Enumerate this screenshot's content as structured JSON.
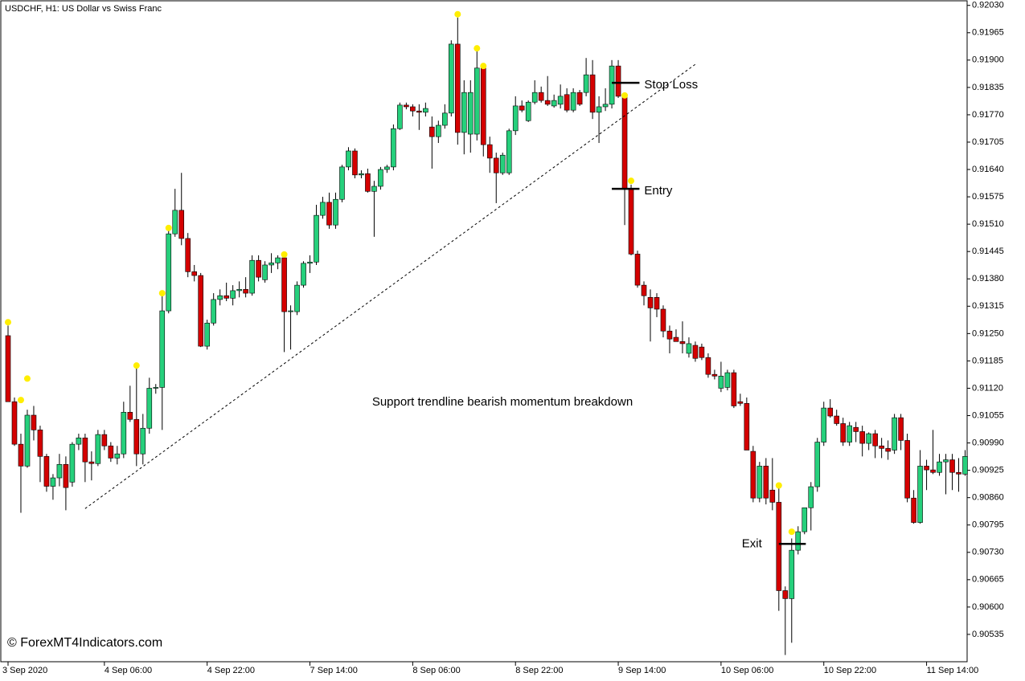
{
  "chart_data": {
    "type": "candlestick",
    "title": "USDCHF, H1:  US Dollar vs Swiss Franc",
    "watermark": "© ForexMT4Indicators.com",
    "annotation": "Support trendline bearish momentum breakdown",
    "up_color": "#26d07c",
    "down_color": "#d40000",
    "categories": [
      "3 Sep 2020",
      null,
      null,
      null,
      null,
      null,
      null,
      null,
      null,
      null,
      null,
      null,
      null,
      null,
      null,
      "4 Sep 06:00",
      null,
      null,
      null,
      null,
      null,
      null,
      null,
      null,
      null,
      null,
      null,
      null,
      null,
      null,
      null,
      "4 Sep 22:00",
      null,
      null,
      null,
      null,
      null,
      null,
      null,
      null,
      null,
      null,
      null,
      null,
      null,
      null,
      null,
      "7 Sep 14:00",
      null,
      null,
      null,
      null,
      null,
      null,
      null,
      null,
      null,
      null,
      null,
      null,
      null,
      null,
      null,
      "8 Sep 06:00",
      null,
      null,
      null,
      null,
      null,
      null,
      null,
      null,
      null,
      null,
      null,
      null,
      null,
      null,
      null,
      "8 Sep 22:00",
      null,
      null,
      null,
      null,
      null,
      null,
      null,
      null,
      null,
      null,
      null,
      null,
      null,
      null,
      null,
      "9 Sep 14:00",
      null,
      null,
      null,
      null,
      null,
      null,
      null,
      null,
      null,
      null,
      null,
      null,
      null,
      null,
      null,
      "10 Sep 06:00",
      null,
      null,
      null,
      null,
      null,
      null,
      null,
      null,
      null,
      null,
      null,
      null,
      null,
      null,
      null,
      "10 Sep 22:00",
      null,
      null,
      null,
      null,
      null,
      null,
      null,
      null,
      null,
      null,
      null,
      null,
      null,
      null,
      null,
      "11 Sep 14:00",
      null,
      null,
      null,
      null,
      null,
      null
    ],
    "ohlc": [
      [
        0.91245,
        0.91269,
        0.91088,
        0.91088
      ],
      [
        0.91088,
        0.91098,
        0.90983,
        0.90987
      ],
      [
        0.90987,
        0.91012,
        0.90824,
        0.90935
      ],
      [
        0.90935,
        0.91069,
        0.90931,
        0.91056
      ],
      [
        0.91056,
        0.91078,
        0.90996,
        0.91021
      ],
      [
        0.91021,
        0.91031,
        0.90897,
        0.90958
      ],
      [
        0.90958,
        0.90964,
        0.90874,
        0.90887
      ],
      [
        0.90887,
        0.90916,
        0.90855,
        0.90907
      ],
      [
        0.90907,
        0.90964,
        0.90887,
        0.90939
      ],
      [
        0.90939,
        0.90958,
        0.9083,
        0.90884
      ],
      [
        0.90897,
        0.90992,
        0.90886,
        0.90987
      ],
      [
        0.90987,
        0.91012,
        0.90973,
        0.91002
      ],
      [
        0.91002,
        0.91012,
        0.90897,
        0.90945
      ],
      [
        0.90945,
        0.9097,
        0.90901,
        0.90941
      ],
      [
        0.90941,
        0.91021,
        0.90935,
        0.9101
      ],
      [
        0.9101,
        0.91021,
        0.90973,
        0.90983
      ],
      [
        0.90983,
        0.90992,
        0.90945,
        0.90954
      ],
      [
        0.90954,
        0.90983,
        0.90939,
        0.90964
      ],
      [
        0.90964,
        0.91088,
        0.90954,
        0.91063
      ],
      [
        0.91063,
        0.91126,
        0.9104,
        0.91046
      ],
      [
        0.91046,
        0.91174,
        0.90935,
        0.90964
      ],
      [
        0.90964,
        0.91059,
        0.90939,
        0.91025
      ],
      [
        0.91025,
        0.91145,
        0.91012,
        0.9112
      ],
      [
        0.9112,
        0.9113,
        0.91107,
        0.91122
      ],
      [
        0.91122,
        0.91346,
        0.91021,
        0.91304
      ],
      [
        0.91304,
        0.91499,
        0.91298,
        0.91487
      ],
      [
        0.91487,
        0.91594,
        0.9148,
        0.91543
      ],
      [
        0.91543,
        0.91632,
        0.9146,
        0.91476
      ],
      [
        0.91476,
        0.91489,
        0.91384,
        0.91397
      ],
      [
        0.91397,
        0.91413,
        0.91374,
        0.91388
      ],
      [
        0.91388,
        0.91394,
        0.91218,
        0.9122
      ],
      [
        0.9122,
        0.91283,
        0.91212,
        0.91275
      ],
      [
        0.91275,
        0.91346,
        0.91269,
        0.91331
      ],
      [
        0.91331,
        0.91355,
        0.91317,
        0.9134
      ],
      [
        0.9134,
        0.91371,
        0.91327,
        0.91334
      ],
      [
        0.91334,
        0.91365,
        0.91317,
        0.91352
      ],
      [
        0.91352,
        0.91374,
        0.91336,
        0.91355
      ],
      [
        0.91355,
        0.91384,
        0.91336,
        0.91346
      ],
      [
        0.91346,
        0.91436,
        0.9134,
        0.91424
      ],
      [
        0.91424,
        0.91436,
        0.91374,
        0.91384
      ],
      [
        0.91378,
        0.91422,
        0.91371,
        0.91413
      ],
      [
        0.91413,
        0.91441,
        0.91394,
        0.91418
      ],
      [
        0.91418,
        0.91436,
        0.91403,
        0.9143
      ],
      [
        0.9143,
        0.91436,
        0.91206,
        0.91302
      ],
      [
        0.91302,
        0.91317,
        0.91212,
        0.91304
      ],
      [
        0.91302,
        0.91374,
        0.91294,
        0.91365
      ],
      [
        0.91365,
        0.91422,
        0.91359,
        0.91417
      ],
      [
        0.91417,
        0.91436,
        0.91394,
        0.9142
      ],
      [
        0.9142,
        0.91556,
        0.91413,
        0.91531
      ],
      [
        0.91531,
        0.91575,
        0.91523,
        0.91562
      ],
      [
        0.91562,
        0.91585,
        0.91499,
        0.91508
      ],
      [
        0.91508,
        0.91585,
        0.91499,
        0.91569
      ],
      [
        0.91569,
        0.91651,
        0.91562,
        0.91646
      ],
      [
        0.91646,
        0.91693,
        0.91638,
        0.91684
      ],
      [
        0.91684,
        0.9169,
        0.91619,
        0.91627
      ],
      [
        0.91627,
        0.91638,
        0.91619,
        0.9163
      ],
      [
        0.9163,
        0.91642,
        0.91585,
        0.91588
      ],
      [
        0.91588,
        0.91613,
        0.9148,
        0.916
      ],
      [
        0.916,
        0.91646,
        0.91592,
        0.9164
      ],
      [
        0.9164,
        0.91651,
        0.91632,
        0.91646
      ],
      [
        0.91646,
        0.91747,
        0.91638,
        0.91737
      ],
      [
        0.91737,
        0.91799,
        0.91734,
        0.91793
      ],
      [
        0.91793,
        0.91799,
        0.91783,
        0.91789
      ],
      [
        0.91789,
        0.91795,
        0.91766,
        0.91779
      ],
      [
        0.91779,
        0.91795,
        0.91734,
        0.91776
      ],
      [
        0.91776,
        0.91799,
        0.91766,
        0.91785
      ],
      [
        0.91741,
        0.91766,
        0.91642,
        0.91718
      ],
      [
        0.91718,
        0.91756,
        0.91703,
        0.91745
      ],
      [
        0.91745,
        0.91795,
        0.91737,
        0.91774
      ],
      [
        0.91774,
        0.91947,
        0.91766,
        0.91938
      ],
      [
        0.91938,
        0.92001,
        0.91699,
        0.91728
      ],
      [
        0.91728,
        0.91852,
        0.91676,
        0.91823
      ],
      [
        0.91724,
        0.91852,
        0.9168,
        0.91823
      ],
      [
        0.91724,
        0.91928,
        0.91709,
        0.91881
      ],
      [
        0.91881,
        0.9189,
        0.91671,
        0.91699
      ],
      [
        0.91699,
        0.91718,
        0.91632,
        0.91667
      ],
      [
        0.91667,
        0.9168,
        0.9156,
        0.91632
      ],
      [
        0.91632,
        0.9168,
        0.91627,
        0.91674
      ],
      [
        0.91632,
        0.91737,
        0.91627,
        0.91732
      ],
      [
        0.91732,
        0.91814,
        0.91722,
        0.91791
      ],
      [
        0.91791,
        0.91804,
        0.91776,
        0.91781
      ],
      [
        0.91756,
        0.91804,
        0.91753,
        0.918
      ],
      [
        0.918,
        0.91852,
        0.91795,
        0.91823
      ],
      [
        0.91823,
        0.91837,
        0.91799,
        0.91804
      ],
      [
        0.91804,
        0.91862,
        0.91791,
        0.91795
      ],
      [
        0.91791,
        0.91818,
        0.91787,
        0.91804
      ],
      [
        0.91795,
        0.91842,
        0.91785,
        0.91814
      ],
      [
        0.91818,
        0.91833,
        0.91776,
        0.91781
      ],
      [
        0.91781,
        0.91833,
        0.91776,
        0.91823
      ],
      [
        0.91823,
        0.91829,
        0.91791,
        0.91795
      ],
      [
        0.91823,
        0.91905,
        0.91814,
        0.91865
      ],
      [
        0.91865,
        0.919,
        0.9176,
        0.91776
      ],
      [
        0.91776,
        0.91814,
        0.91703,
        0.91789
      ],
      [
        0.91789,
        0.91833,
        0.91779,
        0.91795
      ],
      [
        0.91795,
        0.919,
        0.91785,
        0.91886
      ],
      [
        0.91886,
        0.919,
        0.9181,
        0.91814
      ],
      [
        0.91814,
        0.91823,
        0.91508,
        0.91594
      ],
      [
        0.91594,
        0.91604,
        0.91436,
        0.91439
      ],
      [
        0.91439,
        0.91447,
        0.91359,
        0.91365
      ],
      [
        0.91365,
        0.91374,
        0.91317,
        0.9134
      ],
      [
        0.91336,
        0.91355,
        0.91231,
        0.91311
      ],
      [
        0.91336,
        0.91346,
        0.91289,
        0.91308
      ],
      [
        0.91308,
        0.91317,
        0.91241,
        0.91256
      ],
      [
        0.91256,
        0.91269,
        0.91203,
        0.91237
      ],
      [
        0.91241,
        0.9126,
        0.91231,
        0.91231
      ],
      [
        0.91231,
        0.91279,
        0.91203,
        0.91226
      ],
      [
        0.91203,
        0.91241,
        0.91193,
        0.91226
      ],
      [
        0.91222,
        0.91231,
        0.91183,
        0.91191
      ],
      [
        0.91218,
        0.91226,
        0.91187,
        0.91193
      ],
      [
        0.91193,
        0.91203,
        0.91145,
        0.91153
      ],
      [
        0.91153,
        0.91164,
        0.91141,
        0.91149
      ],
      [
        0.9112,
        0.91183,
        0.91111,
        0.91149
      ],
      [
        0.91122,
        0.91164,
        0.91115,
        0.91157
      ],
      [
        0.91157,
        0.91164,
        0.91073,
        0.91078
      ],
      [
        0.91088,
        0.91107,
        0.91078,
        0.91084
      ],
      [
        0.91084,
        0.91098,
        0.90973,
        0.90973
      ],
      [
        0.9097,
        0.90983,
        0.90849,
        0.90859
      ],
      [
        0.90859,
        0.90945,
        0.90849,
        0.90935
      ],
      [
        0.90935,
        0.90954,
        0.90844,
        0.90859
      ],
      [
        0.90878,
        0.90954,
        0.9083,
        0.90849
      ],
      [
        0.90849,
        0.90887,
        0.90591,
        0.90639
      ],
      [
        0.90639,
        0.90649,
        0.90486,
        0.9062
      ],
      [
        0.9062,
        0.90763,
        0.90515,
        0.90735
      ],
      [
        0.90735,
        0.90792,
        0.90725,
        0.90779
      ],
      [
        0.90779,
        0.90836,
        0.90773,
        0.90836
      ],
      [
        0.90836,
        0.90897,
        0.90782,
        0.90886
      ],
      [
        0.90886,
        0.91002,
        0.90874,
        0.90992
      ],
      [
        0.90992,
        0.91088,
        0.90983,
        0.91073
      ],
      [
        0.91073,
        0.91094,
        0.9105,
        0.91054
      ],
      [
        0.91054,
        0.91069,
        0.91031,
        0.91036
      ],
      [
        0.91036,
        0.9105,
        0.90983,
        0.90992
      ],
      [
        0.90992,
        0.9104,
        0.90983,
        0.91031
      ],
      [
        0.91027,
        0.9104,
        0.90992,
        0.91017
      ],
      [
        0.91017,
        0.91031,
        0.90958,
        0.90989
      ],
      [
        0.90989,
        0.91015,
        0.90973,
        0.91012
      ],
      [
        0.91012,
        0.91021,
        0.90954,
        0.90983
      ],
      [
        0.90983,
        0.91002,
        0.90954,
        0.90977
      ],
      [
        0.90977,
        0.90996,
        0.9095,
        0.9097
      ],
      [
        0.90973,
        0.91059,
        0.90964,
        0.9105
      ],
      [
        0.9105,
        0.91059,
        0.90973,
        0.90996
      ],
      [
        0.90996,
        0.91012,
        0.90849,
        0.90859
      ],
      [
        0.90859,
        0.90878,
        0.90798,
        0.90801
      ],
      [
        0.90801,
        0.90973,
        0.90798,
        0.90935
      ],
      [
        0.90935,
        0.9095,
        0.90878,
        0.90926
      ],
      [
        0.90926,
        0.91021,
        0.90916,
        0.9092
      ],
      [
        0.9092,
        0.90964,
        0.90912,
        0.90945
      ],
      [
        0.90945,
        0.90964,
        0.90868,
        0.9095
      ],
      [
        0.9095,
        0.90964,
        0.90878,
        0.9092
      ],
      [
        0.9092,
        0.90954,
        0.90874,
        0.90916
      ],
      [
        0.90916,
        0.90973,
        0.90912,
        0.90958
      ]
    ],
    "markers": {
      "color": "#ffee00",
      "values": [
        0.91277,
        null,
        0.91092,
        0.91143,
        null,
        null,
        null,
        null,
        null,
        null,
        null,
        null,
        null,
        null,
        null,
        null,
        null,
        null,
        null,
        null,
        0.91174,
        null,
        null,
        null,
        0.91346,
        0.91501,
        null,
        null,
        null,
        null,
        null,
        null,
        null,
        null,
        null,
        null,
        null,
        null,
        null,
        null,
        null,
        null,
        null,
        0.91438,
        null,
        null,
        null,
        null,
        null,
        null,
        null,
        null,
        null,
        null,
        null,
        null,
        null,
        null,
        null,
        null,
        null,
        null,
        null,
        null,
        null,
        null,
        null,
        null,
        null,
        null,
        0.92009,
        null,
        null,
        0.91928,
        0.91886,
        null,
        null,
        null,
        null,
        null,
        null,
        null,
        null,
        null,
        null,
        null,
        null,
        null,
        null,
        null,
        null,
        null,
        null,
        null,
        null,
        null,
        0.91816,
        0.91613,
        null,
        null,
        null,
        null,
        null,
        null,
        null,
        null,
        null,
        null,
        null,
        null,
        null,
        null,
        null,
        null,
        null,
        null,
        null,
        null,
        null,
        null,
        0.90889,
        null,
        0.90779,
        null,
        null,
        null,
        null,
        null,
        null,
        null,
        null,
        null,
        null,
        null,
        null,
        null,
        null,
        null,
        null,
        null,
        null,
        null,
        null,
        null,
        null,
        null,
        null,
        null,
        null,
        null
      ]
    },
    "trendline": {
      "start": [
        12,
        0.90834
      ],
      "end": [
        107,
        0.9189
      ]
    },
    "levels": [
      {
        "label": "Stop Loss",
        "value": 0.91846,
        "x": [
          94,
          98.3
        ],
        "label_side": "right"
      },
      {
        "label": "Entry",
        "value": 0.91594,
        "x": [
          94,
          98.3
        ],
        "label_side": "right"
      },
      {
        "label": "Exit",
        "value": 0.9075,
        "x": [
          120,
          124.2
        ],
        "label_side": "left"
      }
    ],
    "ylim": [
      0.9047,
      0.92039
    ],
    "yticks": [
      {
        "value": 0.9203,
        "label": "0.92030"
      },
      0.91965,
      {
        "value": 0.919,
        "label": "0.91900"
      },
      0.91835,
      {
        "value": 0.9177,
        "label": "0.91770"
      },
      0.91705,
      {
        "value": 0.9164,
        "label": "0.91640"
      },
      0.91575,
      {
        "value": 0.9151,
        "label": "0.91510"
      },
      0.91445,
      {
        "value": 0.9138,
        "label": "0.91380"
      },
      0.91315,
      {
        "value": 0.9125,
        "label": "0.91250"
      },
      0.91185,
      {
        "value": 0.9112,
        "label": "0.91120"
      },
      0.91055,
      {
        "value": 0.9099,
        "label": "0.90990"
      },
      0.90925,
      {
        "value": 0.9086,
        "label": "0.90860"
      },
      0.90795,
      {
        "value": 0.9073,
        "label": "0.90730"
      },
      0.90665,
      {
        "value": 0.906,
        "label": "0.90600"
      },
      0.90535
    ]
  }
}
